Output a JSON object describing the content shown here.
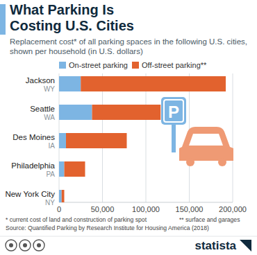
{
  "chart_data": {
    "type": "bar",
    "orientation": "horizontal",
    "stacked": true,
    "title": "What Parking Is Costing U.S. Cities",
    "subtitle": "Replacement cost* of all parking spaces in the following U.S. cities, shown per household (in U.S. dollars)",
    "categories": [
      "Jackson",
      "Seattle",
      "Des Moines",
      "Philadelphia",
      "New York City"
    ],
    "category_states": [
      "WY",
      "WA",
      "IA",
      "PA",
      "NY"
    ],
    "series": [
      {
        "name": "On-street parking",
        "color": "#7db5e3",
        "values": [
          25000,
          38000,
          8000,
          6000,
          3000
        ]
      },
      {
        "name": "Off-street parking**",
        "color": "#e2622e",
        "values": [
          167000,
          79000,
          70000,
          24000,
          3000
        ]
      }
    ],
    "xlim": [
      0,
      200000
    ],
    "xticks": [
      0,
      {
        "value": 50000,
        "label": "50,000"
      },
      {
        "value": 100000,
        "label": "100,000"
      },
      {
        "value": 150000,
        "label": "150,000"
      },
      {
        "value": 200000,
        "label": "200,000"
      }
    ],
    "grid": true,
    "legend": "top",
    "footnotes": [
      "* current cost of land and construction of parking spot",
      "** surface and garages"
    ],
    "source": "Source: Quantified Parking by Research Institute for Housing America (2018)",
    "sign_label": "P",
    "brand": "statista"
  }
}
